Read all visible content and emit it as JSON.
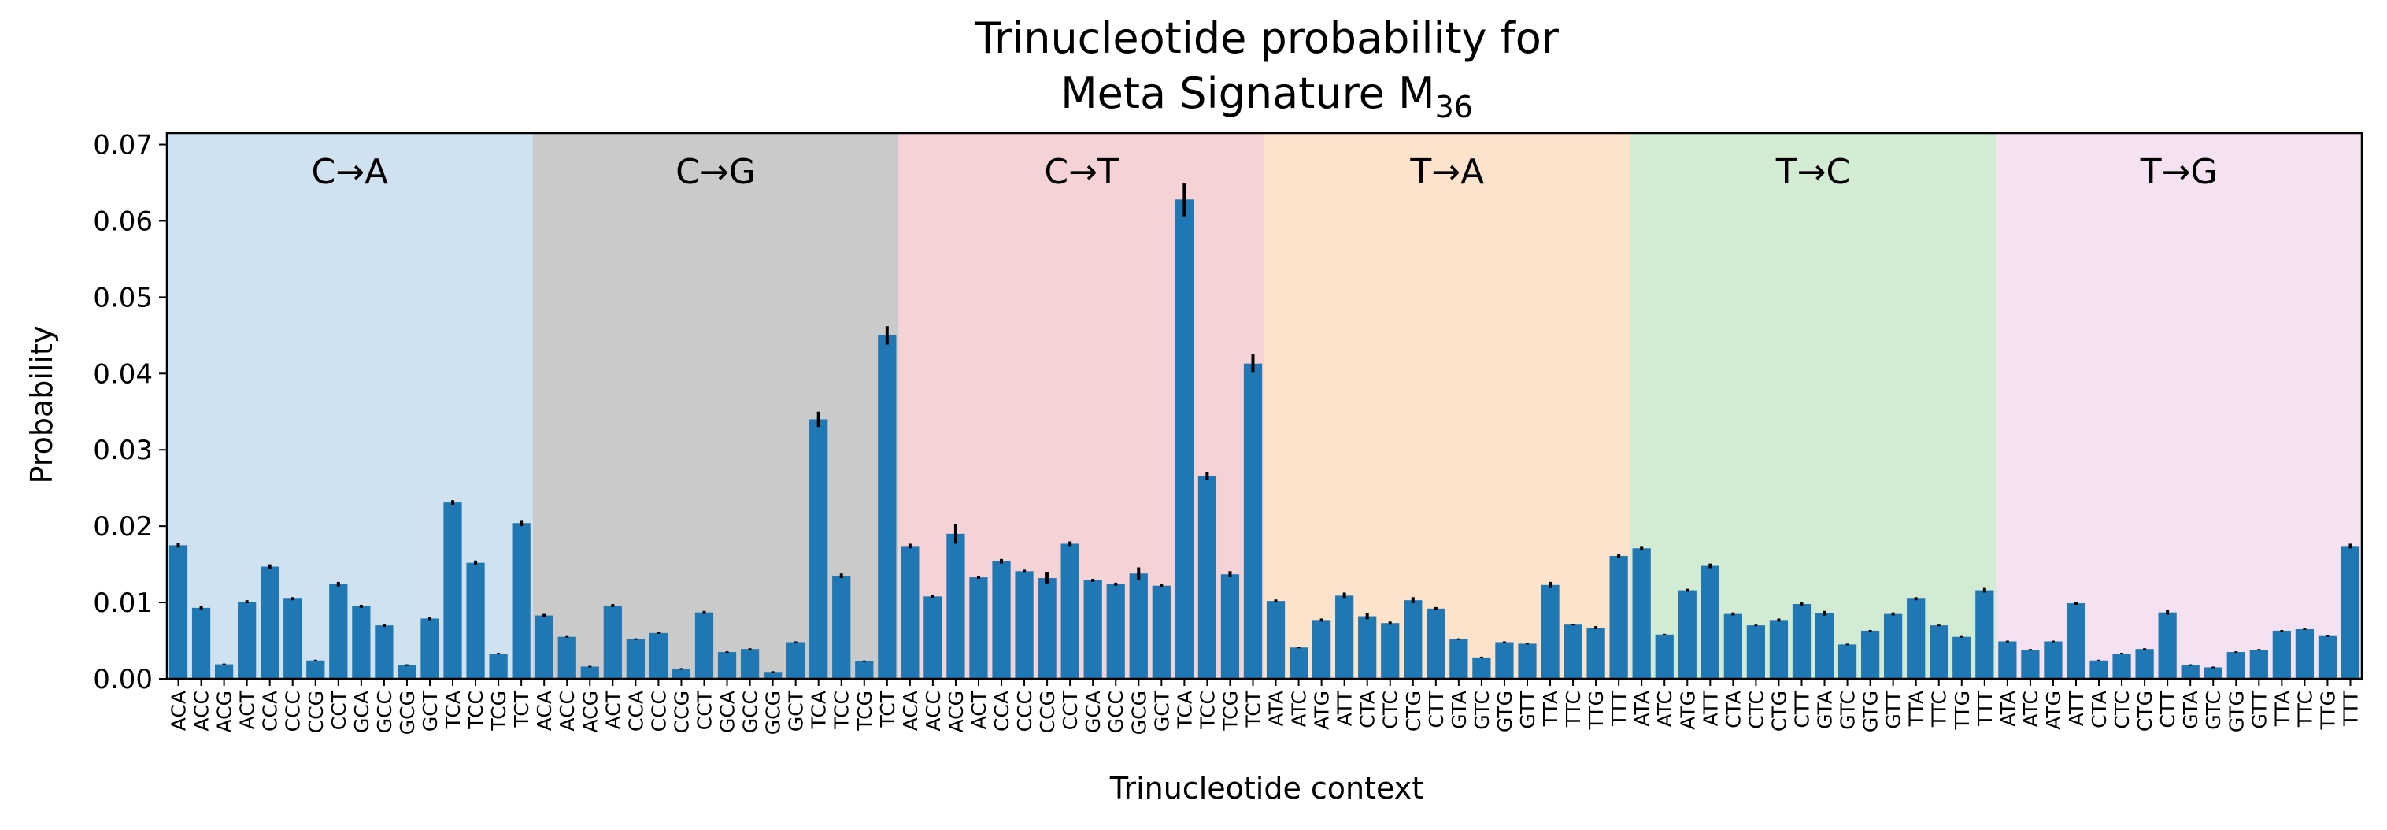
{
  "chart_data": {
    "type": "bar",
    "title_line1": "Trinucleotide probability for",
    "title_line2_main": "Meta Signature M",
    "title_line2_sub": "36",
    "xlabel": "Trinucleotide context",
    "ylabel": "Probability",
    "ylim": [
      0,
      0.0715
    ],
    "yticks": [
      0.0,
      0.01,
      0.02,
      0.03,
      0.04,
      0.05,
      0.06,
      0.07
    ],
    "ytick_labels": [
      "0.00",
      "0.01",
      "0.02",
      "0.03",
      "0.04",
      "0.05",
      "0.06",
      "0.07"
    ],
    "bar_color": "#1f77b4",
    "errorbar_color": "#000000",
    "groups": [
      {
        "label": "C→A",
        "color": "#d0e2f0",
        "categories": [
          "ACA",
          "ACC",
          "ACG",
          "ACT",
          "CCA",
          "CCC",
          "CCG",
          "CCT",
          "GCA",
          "GCC",
          "GCG",
          "GCT",
          "TCA",
          "TCC",
          "TCG",
          "TCT"
        ],
        "values": [
          0.0175,
          0.0093,
          0.0019,
          0.0101,
          0.0147,
          0.0105,
          0.0024,
          0.0124,
          0.0095,
          0.007,
          0.0018,
          0.0079,
          0.0231,
          0.0152,
          0.0033,
          0.0204
        ],
        "errors": [
          0.0003,
          0.0002,
          0.0001,
          0.0002,
          0.0003,
          0.0002,
          0.0001,
          0.0003,
          0.0002,
          0.0002,
          0.0001,
          0.0002,
          0.0003,
          0.0003,
          0.0001,
          0.0004
        ]
      },
      {
        "label": "C→G",
        "color": "#cacaca",
        "categories": [
          "ACA",
          "ACC",
          "ACG",
          "ACT",
          "CCA",
          "CCC",
          "CCG",
          "CCT",
          "GCA",
          "GCC",
          "GCG",
          "GCT",
          "TCA",
          "TCC",
          "TCG",
          "TCT"
        ],
        "values": [
          0.0083,
          0.0055,
          0.0016,
          0.0096,
          0.0052,
          0.006,
          0.0013,
          0.0087,
          0.0035,
          0.0039,
          0.0009,
          0.0048,
          0.034,
          0.0135,
          0.0023,
          0.045
        ],
        "errors": [
          0.0002,
          0.0001,
          0.0001,
          0.0002,
          0.0001,
          0.0001,
          0.0001,
          0.0002,
          0.0001,
          0.0001,
          0.0001,
          0.0001,
          0.001,
          0.0003,
          0.0001,
          0.0012
        ]
      },
      {
        "label": "C→T",
        "color": "#f4d2d6",
        "categories": [
          "ACA",
          "ACC",
          "ACG",
          "ACT",
          "CCA",
          "CCC",
          "CCG",
          "CCT",
          "GCA",
          "GCC",
          "GCG",
          "GCT",
          "TCA",
          "TCC",
          "TCG",
          "TCT"
        ],
        "values": [
          0.0174,
          0.0108,
          0.019,
          0.0133,
          0.0154,
          0.0141,
          0.0132,
          0.0177,
          0.0129,
          0.0124,
          0.0138,
          0.0122,
          0.0628,
          0.0266,
          0.0137,
          0.0413
        ],
        "errors": [
          0.0003,
          0.0002,
          0.0013,
          0.0002,
          0.0003,
          0.0002,
          0.0008,
          0.0003,
          0.0002,
          0.0002,
          0.0008,
          0.0002,
          0.0022,
          0.0005,
          0.0004,
          0.0012
        ]
      },
      {
        "label": "T→A",
        "color": "#fde3cb",
        "categories": [
          "ATA",
          "ATC",
          "ATG",
          "ATT",
          "CTA",
          "CTC",
          "CTG",
          "CTT",
          "GTA",
          "GTC",
          "GTG",
          "GTT",
          "TTA",
          "TTC",
          "TTG",
          "TTT"
        ],
        "values": [
          0.0102,
          0.0041,
          0.0077,
          0.0109,
          0.0082,
          0.0073,
          0.0103,
          0.0092,
          0.0052,
          0.0028,
          0.0048,
          0.0046,
          0.0123,
          0.0071,
          0.0067,
          0.0161
        ],
        "errors": [
          0.0002,
          0.0001,
          0.0002,
          0.0004,
          0.0004,
          0.0002,
          0.0004,
          0.0002,
          0.0001,
          0.0001,
          0.0001,
          0.0001,
          0.0004,
          0.0001,
          0.0002,
          0.0003
        ]
      },
      {
        "label": "T→C",
        "color": "#d4ebd3",
        "categories": [
          "ATA",
          "ATC",
          "ATG",
          "ATT",
          "CTA",
          "CTC",
          "CTG",
          "CTT",
          "GTA",
          "GTC",
          "GTG",
          "GTT",
          "TTA",
          "TTC",
          "TTG",
          "TTT"
        ],
        "values": [
          0.0171,
          0.0058,
          0.0116,
          0.0148,
          0.0085,
          0.007,
          0.0077,
          0.0098,
          0.0086,
          0.0045,
          0.0063,
          0.0085,
          0.0105,
          0.007,
          0.0055,
          0.0116
        ],
        "errors": [
          0.0003,
          0.0001,
          0.0002,
          0.0003,
          0.0002,
          0.0001,
          0.0002,
          0.0002,
          0.0003,
          0.0001,
          0.0001,
          0.0002,
          0.0002,
          0.0001,
          0.0001,
          0.0003
        ]
      },
      {
        "label": "T→G",
        "color": "#f4e1f1",
        "categories": [
          "ATA",
          "ATC",
          "ATG",
          "ATT",
          "CTA",
          "CTC",
          "CTG",
          "CTT",
          "GTA",
          "GTC",
          "GTG",
          "GTT",
          "TTA",
          "TTC",
          "TTG",
          "TTT"
        ],
        "values": [
          0.0049,
          0.0038,
          0.0049,
          0.0099,
          0.0024,
          0.0033,
          0.0039,
          0.0087,
          0.0018,
          0.0015,
          0.0035,
          0.0038,
          0.0063,
          0.0065,
          0.0056,
          0.0174
        ],
        "errors": [
          0.0001,
          0.0001,
          0.0001,
          0.0002,
          0.0001,
          0.0001,
          0.0001,
          0.0003,
          0.0001,
          0.0001,
          0.0001,
          0.0001,
          0.0001,
          0.0001,
          0.0001,
          0.0003
        ]
      }
    ]
  }
}
